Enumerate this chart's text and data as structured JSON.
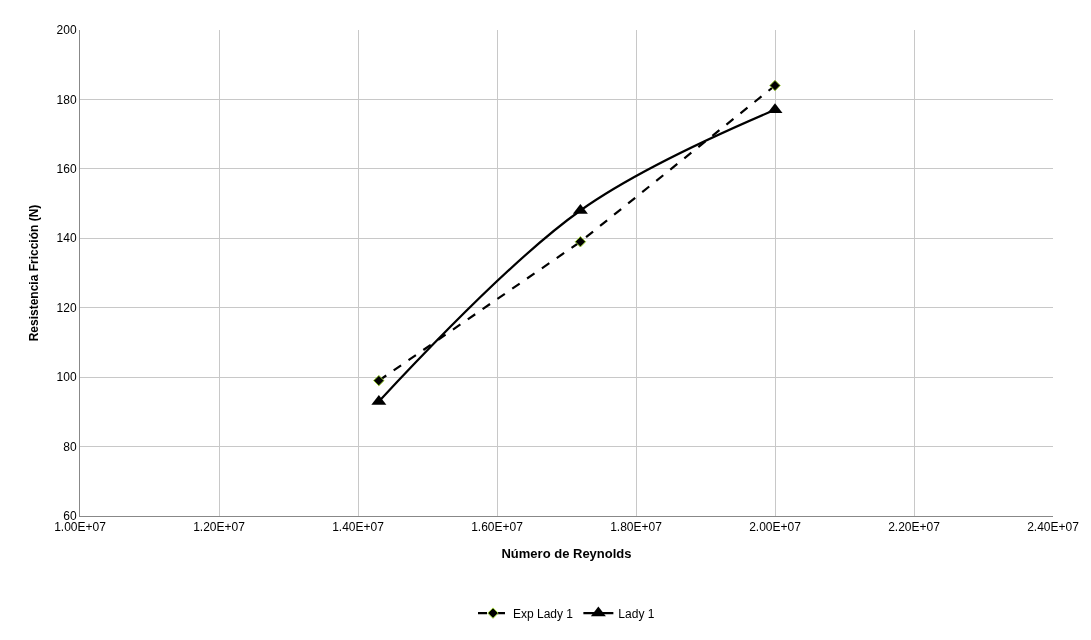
{
  "chart_data": {
    "type": "line",
    "xlabel": "Número de Reynolds",
    "ylabel": "Resistencia Fricción (N)",
    "x": [
      14300000,
      17200000,
      20000000
    ],
    "series": [
      {
        "name": "Exp Lady 1",
        "color": "#000000",
        "values": [
          99,
          139,
          184
        ],
        "marker": "diamond",
        "line_style": "dashed"
      },
      {
        "name": "Lady 1",
        "color": "#000000",
        "values": [
          93,
          148,
          177
        ],
        "marker": "triangle",
        "line_style": "solid"
      }
    ],
    "xlim": [
      10000000,
      24000000
    ],
    "xticks": [
      {
        "value": 10000000,
        "label": "1.00E+07"
      },
      {
        "value": 12000000,
        "label": "1.20E+07"
      },
      {
        "value": 14000000,
        "label": "1.40E+07"
      },
      {
        "value": 16000000,
        "label": "1.60E+07"
      },
      {
        "value": 18000000,
        "label": "1.80E+07"
      },
      {
        "value": 20000000,
        "label": "2.00E+07"
      },
      {
        "value": 22000000,
        "label": "2.20E+07"
      },
      {
        "value": 24000000,
        "label": "2.40E+07"
      }
    ],
    "ylim": [
      60,
      200
    ],
    "yticks": [
      60,
      80,
      100,
      120,
      140,
      160,
      180,
      200
    ],
    "grid": true,
    "legend": "bottom"
  }
}
